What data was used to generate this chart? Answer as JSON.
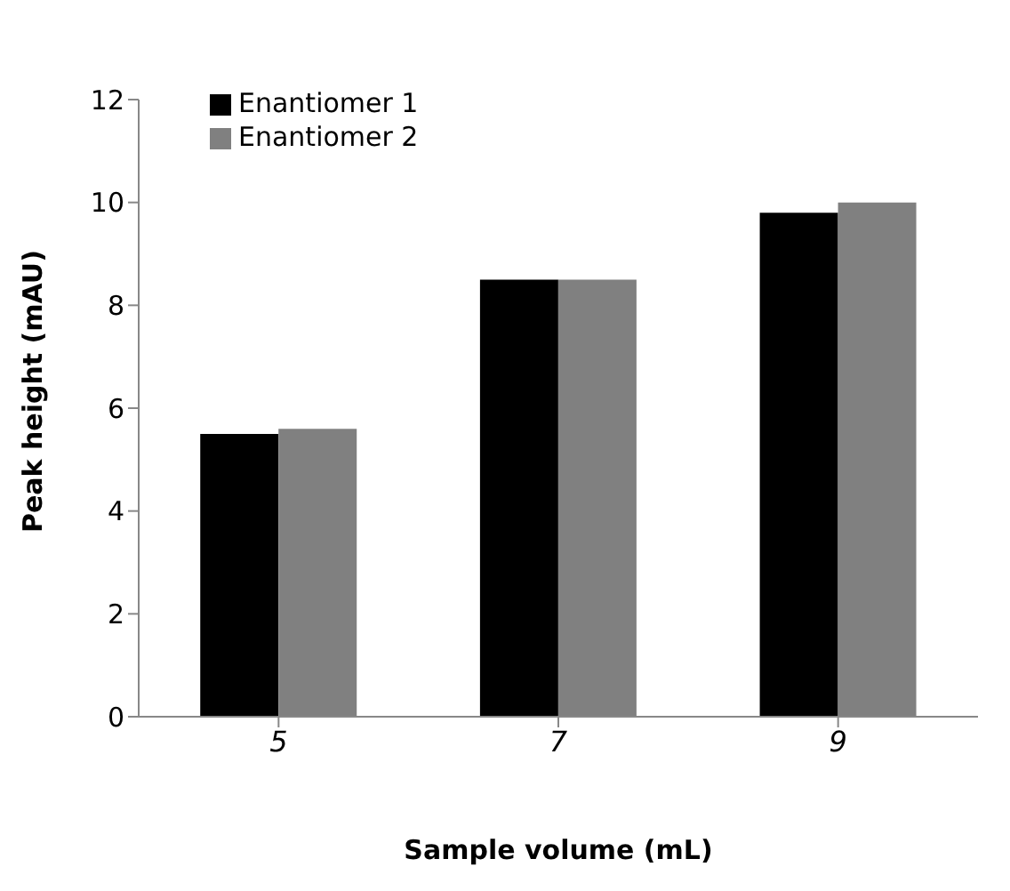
{
  "chart_data": {
    "type": "bar",
    "xlabel": "Sample volume (mL)",
    "ylabel": "Peak height (mAU)",
    "categories": [
      "5",
      "7",
      "9"
    ],
    "series": [
      {
        "name": "Enantiomer 1",
        "color": "#000000",
        "values": [
          5.5,
          8.5,
          9.8
        ]
      },
      {
        "name": "Enantiomer 2",
        "color": "#808080",
        "values": [
          5.6,
          8.5,
          10.0
        ]
      }
    ],
    "ylim": [
      0,
      12
    ],
    "yticks": [
      0,
      2,
      4,
      6,
      8,
      10,
      12
    ],
    "grid": false,
    "legend": "top left"
  }
}
